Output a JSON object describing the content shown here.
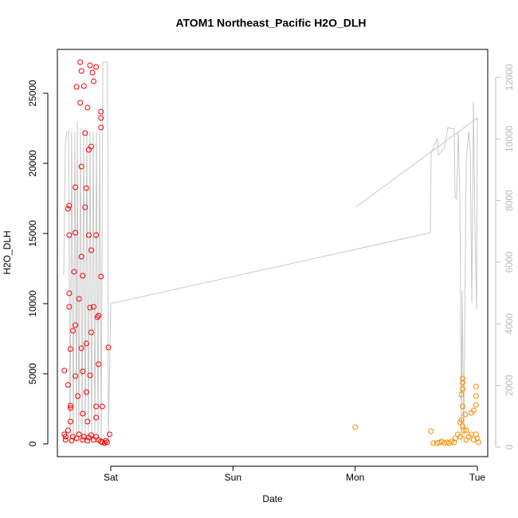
{
  "chart_data": {
    "type": "scatter",
    "title": "ATOM1 Northeast_Pacific H2O_DLH",
    "x_label": "Date",
    "y_label": "H2O_DLH",
    "xlim": [
      -0.437,
      3.085
    ],
    "xticks": [
      {
        "value": 0,
        "label": "Sat"
      },
      {
        "value": 1,
        "label": "Sun"
      },
      {
        "value": 2,
        "label": "Mon"
      },
      {
        "value": 3,
        "label": "Tue"
      }
    ],
    "ylim": [
      -909,
      28125
    ],
    "yticks": [
      0,
      5000,
      10000,
      15000,
      20000,
      25000
    ],
    "y2lim": [
      -310,
      12905
    ],
    "y2ticks": [
      0,
      2000,
      4000,
      6000,
      8000,
      10000,
      12000
    ],
    "series": [
      {
        "color": "#ff0000",
        "x": [
          -0.38,
          -0.38,
          -0.37,
          -0.35,
          -0.34,
          -0.34,
          -0.35,
          -0.33,
          -0.33,
          -0.33,
          -0.33,
          -0.34,
          -0.34,
          -0.31,
          -0.3,
          -0.29,
          -0.29,
          -0.29,
          -0.29,
          -0.28,
          -0.27,
          -0.26,
          -0.25,
          -0.24,
          -0.25,
          -0.24,
          -0.24,
          -0.24,
          -0.23,
          -0.23,
          -0.23,
          -0.22,
          -0.21,
          -0.2,
          -0.21,
          -0.2,
          -0.2,
          -0.19,
          -0.19,
          -0.18,
          -0.18,
          -0.17,
          -0.17,
          -0.17,
          -0.16,
          -0.16,
          -0.16,
          -0.15,
          -0.14,
          -0.14,
          -0.12,
          -0.12,
          -0.12,
          -0.12,
          -0.11,
          -0.1,
          -0.1,
          -0.08,
          -0.08,
          -0.08,
          -0.08,
          -0.07,
          -0.02,
          -0.37,
          -0.35,
          -0.32,
          -0.31,
          -0.28,
          -0.26,
          -0.23,
          -0.22,
          -0.19,
          -0.18,
          -0.16,
          -0.14,
          -0.12,
          -0.1,
          -0.08,
          -0.07,
          -0.05,
          -0.03,
          -0.01,
          -0.04
        ],
        "values": [
          5227,
          682,
          284,
          16761,
          16989,
          14886,
          4205,
          1591,
          2557,
          2727,
          6761,
          9773,
          10739,
          8068,
          12273,
          18295,
          15057,
          8466,
          4830,
          25455,
          3409,
          10341,
          27216,
          26591,
          24318,
          19773,
          13352,
          6818,
          5170,
          11989,
          2159,
          25511,
          22159,
          18239,
          16875,
          7159,
          3693,
          23977,
          1591,
          20966,
          14886,
          26989,
          9716,
          4886,
          21193,
          13807,
          7955,
          26477,
          25852,
          9773,
          26875,
          1875,
          14886,
          2670,
          9034,
          9148,
          5682,
          23693,
          23239,
          22557,
          11932,
          2670,
          6875,
          511,
          966,
          227,
          511,
          398,
          682,
          284,
          511,
          227,
          455,
          625,
          284,
          511,
          284,
          170,
          114,
          57,
          114,
          682,
          227
        ]
      },
      {
        "color": "#ff8c00",
        "x": [
          2.0,
          2.62,
          2.64,
          2.67,
          2.69,
          2.71,
          2.73,
          2.75,
          2.77,
          2.79,
          2.81,
          2.82,
          2.84,
          2.86,
          2.87,
          2.88,
          2.88,
          2.87,
          2.88,
          2.88,
          2.88,
          2.89,
          2.91,
          2.91,
          2.93,
          2.95,
          2.95,
          2.97,
          2.97,
          2.99,
          2.99,
          2.99,
          2.99,
          3.0,
          3.01,
          2.9,
          2.86
        ],
        "values": [
          1193,
          909,
          57,
          57,
          114,
          170,
          57,
          114,
          57,
          170,
          114,
          398,
          682,
          511,
          1705,
          1250,
          2670,
          3523,
          3920,
          4375,
          4659,
          966,
          966,
          284,
          511,
          2216,
          682,
          2386,
          284,
          4091,
          3409,
          2784,
          682,
          398,
          114,
          2102,
          1534
        ]
      },
      {
        "color": "#c8c8c8",
        "axis": "y2",
        "line": true,
        "x": [
          -0.385,
          -0.372,
          -0.359,
          -0.346,
          -0.333,
          -0.32,
          -0.307,
          -0.294,
          -0.28,
          -0.274,
          -0.261,
          -0.248,
          -0.235,
          -0.222,
          -0.209,
          -0.196,
          -0.183,
          -0.17,
          -0.157,
          -0.144,
          -0.13,
          -0.117,
          -0.104,
          -0.091,
          -0.078,
          -0.065,
          -0.026,
          -0.02,
          0,
          2.616,
          2.622,
          2.655,
          2.674,
          2.681,
          2.733,
          2.759,
          2.811,
          2.818,
          2.831,
          2.844,
          2.857,
          2.863,
          2.87,
          2.876,
          2.889,
          2.909,
          2.929,
          2.942,
          2.955,
          2.968,
          2.981,
          2.994,
          3.0,
          2.003
        ],
        "values": [
          5586,
          9853,
          10240,
          10240,
          155,
          10240,
          155,
          10240,
          155,
          10577,
          155,
          10370,
          155,
          10240,
          155,
          10240,
          155,
          10240,
          155,
          10240,
          155,
          10240,
          155,
          10240,
          155,
          12490,
          12490,
          155,
          4655,
          6956,
          9542,
          9853,
          10034,
          9465,
          9723,
          10370,
          10318,
          8094,
          8042,
          10240,
          8042,
          4939,
          155,
          5069,
          284,
          9335,
          10240,
          9594,
          4681,
          11197,
          7008,
          4474,
          10680,
          7784
        ]
      }
    ]
  }
}
